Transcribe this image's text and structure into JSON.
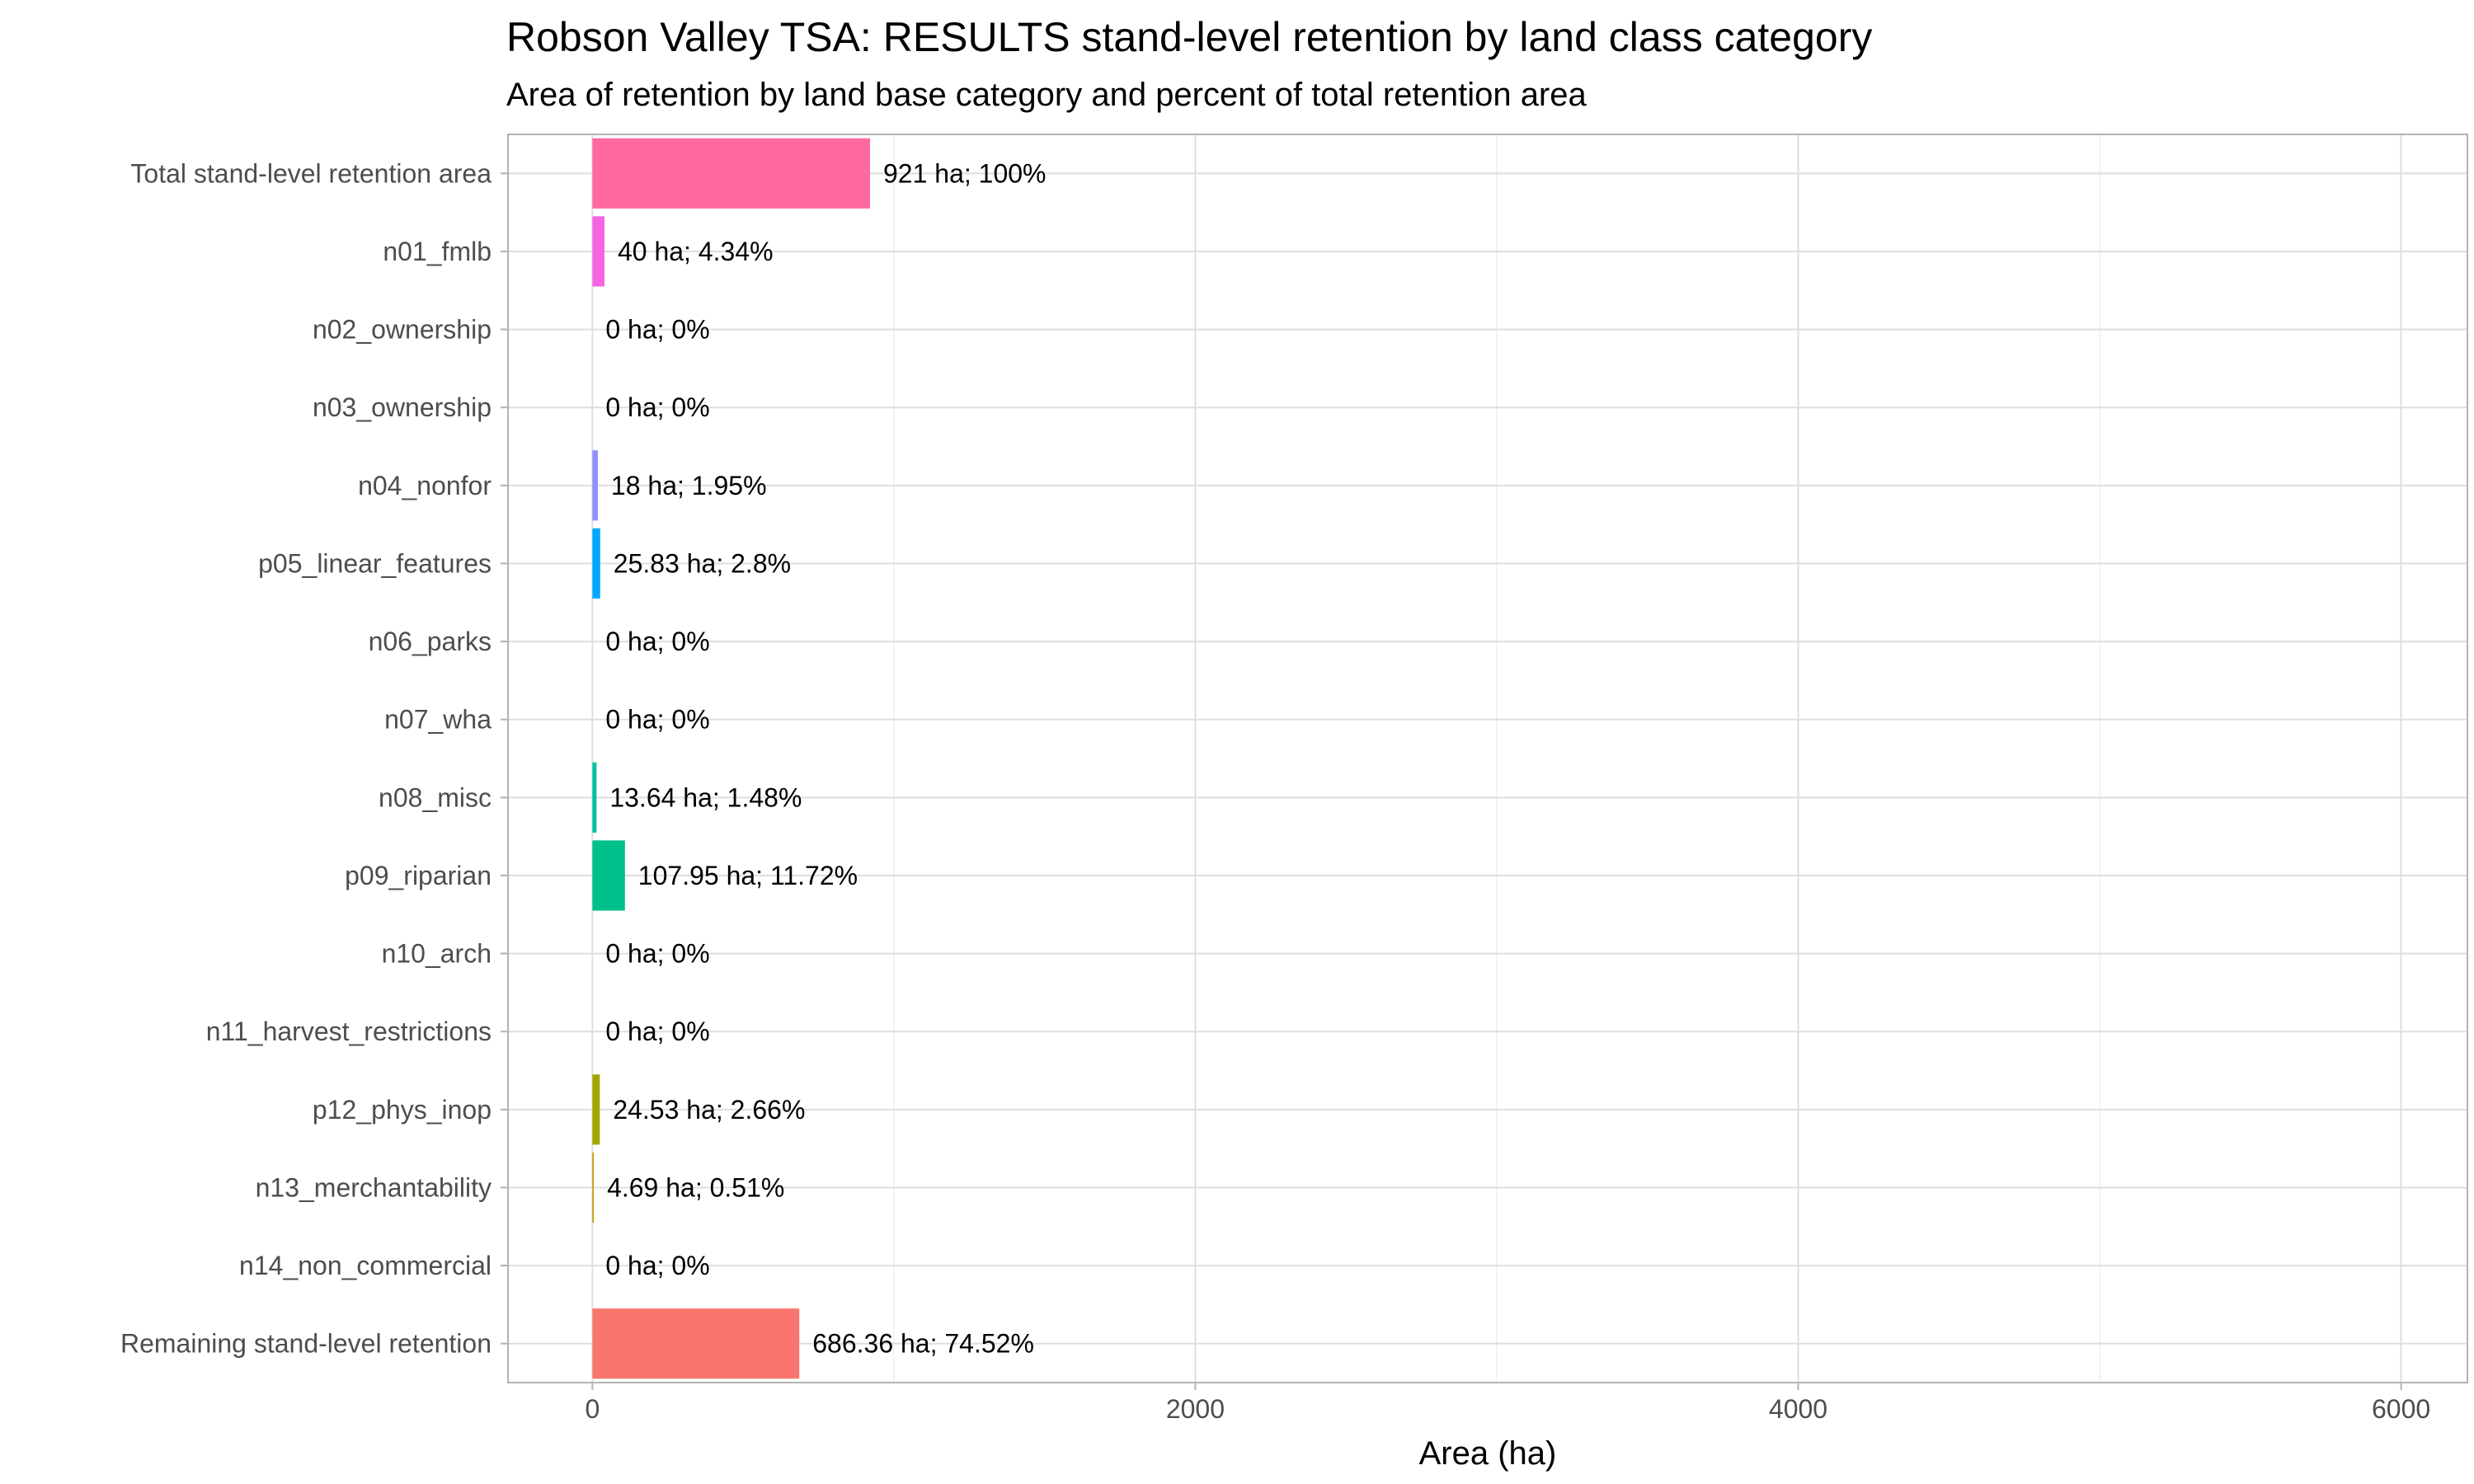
{
  "chart_data": {
    "type": "bar",
    "orientation": "horizontal",
    "title": "Robson Valley TSA: RESULTS stand-level retention by land class category",
    "subtitle": "Area of retention by land base category and percent of total retention area",
    "xlabel": "Area (ha)",
    "ylabel": "",
    "xlim": [
      -280,
      6220
    ],
    "xticks": [
      0,
      2000,
      4000,
      6000
    ],
    "grid": true,
    "legend": "none",
    "categories": [
      "Total stand-level retention area",
      "n01_fmlb",
      "n02_ownership",
      "n03_ownership",
      "n04_nonfor",
      "p05_linear_features",
      "n06_parks",
      "n07_wha",
      "n08_misc",
      "p09_riparian",
      "n10_arch",
      "n11_harvest_restrictions",
      "p12_phys_inop",
      "n13_merchantability",
      "n14_non_commercial",
      "Remaining stand-level retention"
    ],
    "values": [
      921,
      40,
      0,
      0,
      18,
      25.83,
      0,
      0,
      13.64,
      107.95,
      0,
      0,
      24.53,
      4.69,
      0,
      686.36
    ],
    "data_labels": [
      "921 ha; 100%",
      "40 ha; 4.34%",
      "0 ha; 0%",
      "0 ha; 0%",
      "18 ha; 1.95%",
      "25.83 ha; 2.8%",
      "0 ha; 0%",
      "0 ha; 0%",
      "13.64 ha; 1.48%",
      "107.95 ha; 11.72%",
      "0 ha; 0%",
      "0 ha; 0%",
      "24.53 ha; 2.66%",
      "4.69 ha; 0.51%",
      "0 ha; 0%",
      "686.36 ha; 74.52%"
    ],
    "colors": [
      "#FF68A1",
      "#F564E3",
      "#E76BF3",
      "#C77CFF",
      "#8F91FF",
      "#00A9FF",
      "#00B4F0",
      "#00BFC4",
      "#00C1A3",
      "#00C08B",
      "#00BD5C",
      "#7CAE00",
      "#A3A500",
      "#C49A00",
      "#DE8C00",
      "#F8766D"
    ]
  }
}
